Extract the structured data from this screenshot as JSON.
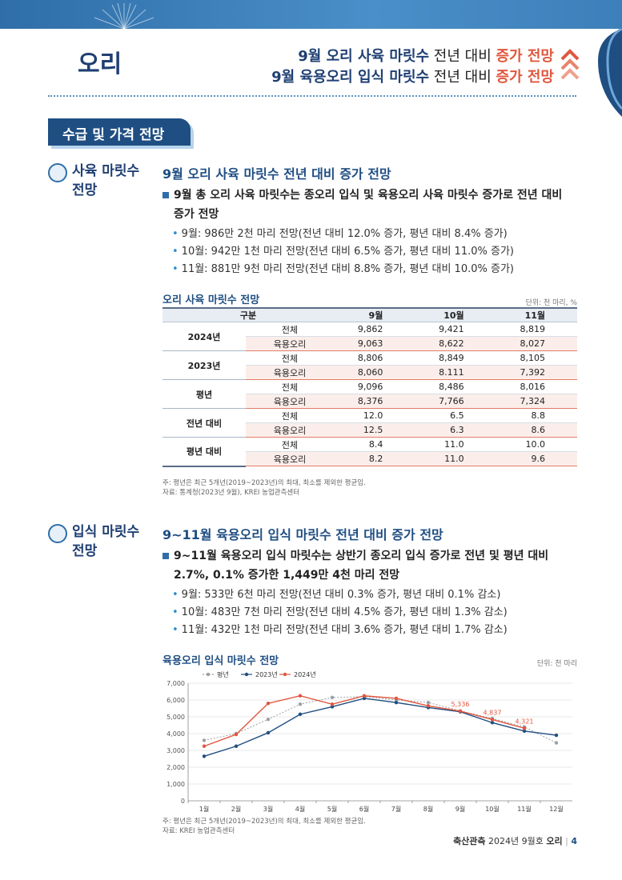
{
  "header": {
    "animal": "오리",
    "line1_bold": "9월 오리 사육 마릿수",
    "line1_plain": " 전년 대비 ",
    "line1_trend": "증가 전망",
    "line2_bold": "9월 육용오리 입식 마릿수",
    "line2_plain": " 전년 대비 ",
    "line2_trend": "증가 전망"
  },
  "section_tab": "수급 및 가격 전망",
  "breeding": {
    "side_title_1": "사육 마릿수",
    "side_title_2": "전망",
    "heading": "9월 오리 사육 마릿수 전년 대비 증가 전망",
    "lead_1": "9월 총 오리 사육 마릿수는 종오리 입식 및 육용오리 사육 마릿수 증가로 전년 대비",
    "lead_2": "증가 전망",
    "bullets": [
      "9월: 986만 2천 마리 전망(전년 대비 12.0% 증가, 평년 대비 8.4% 증가)",
      "10월: 942만 1천 마리 전망(전년 대비 6.5% 증가, 평년 대비 11.0% 증가)",
      "11월: 881만 9천 마리 전망(전년 대비 8.8% 증가, 평년 대비 10.0% 증가)"
    ],
    "table_caption": "오리 사육 마릿수 전망",
    "table_unit": "단위: 천 마리, %",
    "table_headers": [
      "구분",
      "9월",
      "10월",
      "11월"
    ],
    "table_groups": [
      {
        "group": "2024년",
        "rows": [
          {
            "kind": "전체",
            "values": [
              "9,862",
              "9,421",
              "8,819"
            ]
          },
          {
            "kind": "육용오리",
            "values": [
              "9,063",
              "8,622",
              "8,027"
            ]
          }
        ]
      },
      {
        "group": "2023년",
        "rows": [
          {
            "kind": "전체",
            "values": [
              "8,806",
              "8,849",
              "8,105"
            ]
          },
          {
            "kind": "육용오리",
            "values": [
              "8,060",
              "8.111",
              "7,392"
            ]
          }
        ]
      },
      {
        "group": "평년",
        "rows": [
          {
            "kind": "전체",
            "values": [
              "9,096",
              "8,486",
              "8,016"
            ]
          },
          {
            "kind": "육용오리",
            "values": [
              "8,376",
              "7,766",
              "7,324"
            ]
          }
        ]
      },
      {
        "group": "전년 대비",
        "rows": [
          {
            "kind": "전체",
            "values": [
              "12.0",
              "6.5",
              "8.8"
            ]
          },
          {
            "kind": "육용오리",
            "values": [
              "12.5",
              "6.3",
              "8.6"
            ]
          }
        ]
      },
      {
        "group": "평년 대비",
        "rows": [
          {
            "kind": "전체",
            "values": [
              "8.4",
              "11.0",
              "10.0"
            ]
          },
          {
            "kind": "육용오리",
            "values": [
              "8.2",
              "11.0",
              "9.6"
            ]
          }
        ]
      }
    ],
    "note_1": "주: 평년은 최근 5개년(2019~2023년)의 최대, 최소를 제외한 평균임.",
    "note_2": "자료: 통계청(2023년 9월), KREI 농업관측센터"
  },
  "stocking": {
    "side_title_1": "입식 마릿수",
    "side_title_2": "전망",
    "heading": "9~11월 육용오리 입식 마릿수 전년 대비 증가 전망",
    "lead_1": "9~11월 육용오리 입식 마릿수는 상반기 종오리 입식 증가로 전년 및 평년 대비",
    "lead_2": "2.7%, 0.1% 증가한 1,449만 4천 마리 전망",
    "bullets": [
      "9월: 533만 6천 마리 전망(전년 대비 0.3% 증가, 평년 대비 0.1% 감소)",
      "10월: 483만 7천 마리 전망(전년 대비 4.5% 증가, 평년 대비 1.3% 감소)",
      "11월: 432만 1천 마리 전망(전년 대비 3.6% 증가, 평년 대비 1.7% 감소)"
    ],
    "chart_caption": "육용오리 입식 마릿수 전망",
    "chart_unit": "단위: 천 마리",
    "note_1": "주: 평년은 최근 5개년(2019~2023년)의 최대, 최소를 제외한 평균임.",
    "note_2": "자료: KREI 농업관측센터"
  },
  "chart_data": {
    "type": "line",
    "title": "육용오리 입식 마릿수 전망",
    "ylabel": "",
    "xlabel": "",
    "categories": [
      "1월",
      "2월",
      "3월",
      "4월",
      "5월",
      "6월",
      "7월",
      "8월",
      "9월",
      "10월",
      "11월",
      "12월"
    ],
    "ylim": [
      0,
      7000
    ],
    "yticks": [
      "0",
      "1,000",
      "2,000",
      "3,000",
      "4,000",
      "5,000",
      "6,000",
      "7,000"
    ],
    "legend_position": "top-left",
    "grid": true,
    "series": [
      {
        "name": "평년",
        "color": "#9aa0a6",
        "style": "dotted",
        "values": [
          3600,
          4000,
          4850,
          5750,
          6150,
          6200,
          6000,
          5850,
          5350,
          4900,
          4400,
          3450
        ]
      },
      {
        "name": "2023년",
        "color": "#1f4e82",
        "style": "solid",
        "values": [
          2650,
          3250,
          4050,
          5150,
          5600,
          6100,
          5850,
          5550,
          5300,
          4650,
          4150,
          3900
        ]
      },
      {
        "name": "2024년",
        "color": "#e0563e",
        "style": "solid",
        "values": [
          3250,
          3950,
          5800,
          6250,
          5750,
          6250,
          6100,
          5650,
          5336,
          4837,
          4321,
          null
        ]
      }
    ],
    "data_labels": [
      {
        "series": "2024년",
        "index": 8,
        "text": "5,336"
      },
      {
        "series": "2024년",
        "index": 9,
        "text": "4,837"
      },
      {
        "series": "2024년",
        "index": 10,
        "text": "4,321"
      }
    ]
  },
  "footer": {
    "title": "축산관측",
    "issue": " 2024년 9월호 ",
    "animal": "오리",
    "sep": " | ",
    "page": "4"
  }
}
